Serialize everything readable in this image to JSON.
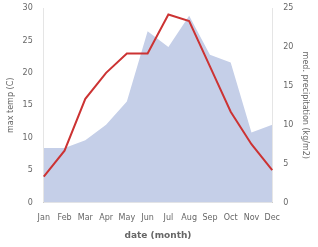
{
  "chart_data": {
    "type": "line",
    "xlabel": "date (month)",
    "ylabel": "max temp (C)",
    "y2label": "med. precipitation (kg/m2)",
    "categories": [
      "Jan",
      "Feb",
      "Mar",
      "Apr",
      "May",
      "Jun",
      "Jul",
      "Aug",
      "Sep",
      "Oct",
      "Nov",
      "Dec"
    ],
    "series": [
      {
        "type": "area",
        "color": "#c5cfe8",
        "axis": "y2",
        "values": [
          7,
          7,
          8,
          10,
          13,
          22,
          20,
          24,
          19,
          18,
          9,
          10
        ]
      },
      {
        "type": "line",
        "color": "#cc3333",
        "values": [
          4,
          8,
          16,
          20,
          23,
          23,
          29,
          28,
          21,
          14,
          9,
          5
        ]
      }
    ],
    "ylim": [
      0,
      30
    ],
    "yticks": [
      0,
      5,
      10,
      15,
      20,
      25,
      30
    ],
    "y2lim": [
      0,
      25
    ],
    "y2ticks": [
      0,
      5,
      10,
      15,
      20,
      25
    ],
    "grid": false
  }
}
